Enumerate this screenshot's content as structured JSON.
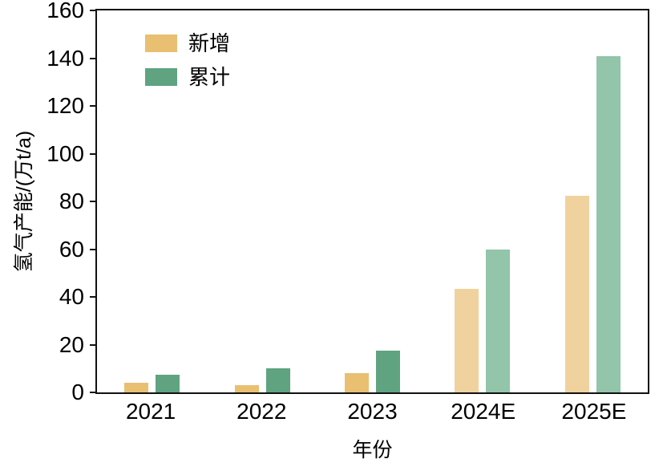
{
  "chart_data": {
    "type": "bar",
    "title": "",
    "xlabel": "年份",
    "ylabel": "氢气产能/(万t/a)",
    "ylim": [
      0,
      160
    ],
    "yticks": [
      0,
      20,
      40,
      60,
      80,
      100,
      120,
      140,
      160
    ],
    "grid": false,
    "legend_position": "top-left",
    "categories": [
      "2021",
      "2022",
      "2023",
      "2024E",
      "2025E"
    ],
    "estimate_flags": [
      false,
      false,
      false,
      true,
      true
    ],
    "series": [
      {
        "name": "新增",
        "values": [
          4,
          3,
          8,
          43.5,
          82.5
        ],
        "color": "#e9bf72",
        "color_estimate": "#f0d29e"
      },
      {
        "name": "累计",
        "values": [
          7.5,
          10,
          17.5,
          60,
          141
        ],
        "color": "#5fa381",
        "color_estimate": "#92c5a9"
      }
    ]
  }
}
